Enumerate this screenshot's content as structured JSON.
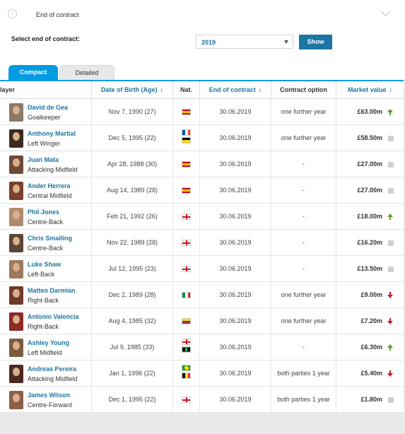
{
  "header": {
    "title": "End of contract"
  },
  "filter": {
    "label": "Select end of contract:",
    "selected": "2019",
    "button": "Show"
  },
  "tabs": [
    {
      "label": "Compact"
    },
    {
      "label": "Detailed"
    }
  ],
  "columns": {
    "player": "layer",
    "dob": "Date of Birth (Age)",
    "nat": "Nat.",
    "eoc": "End of contract",
    "option": "Contract option",
    "value": "Market value",
    "sort_glyph": "↕"
  },
  "colors": {
    "accent": "#009ce3",
    "link": "#1d75a3",
    "up": "#5c9c2e",
    "down": "#c81c1c"
  },
  "players": [
    {
      "name": "David de Gea",
      "position": "Goalkeeper",
      "dob": "Nov 7, 1990 (27)",
      "nat": [
        "spain"
      ],
      "eoc": "30.06.2019",
      "option": "one further year",
      "value": "£63.00m",
      "trend": "up",
      "avatar": "#8a7a66"
    },
    {
      "name": "Anthony Martial",
      "position": "Left Winger",
      "dob": "Dec 5, 1995 (22)",
      "nat": [
        "france",
        "guadeloupe"
      ],
      "eoc": "30.06.2019",
      "option": "one further year",
      "value": "£58.50m",
      "trend": "same",
      "avatar": "#3b2a22"
    },
    {
      "name": "Juan Mata",
      "position": "Attacking Midfield",
      "dob": "Apr 28, 1988 (30)",
      "nat": [
        "spain"
      ],
      "eoc": "30.06.2019",
      "option": "-",
      "value": "£27.00m",
      "trend": "same",
      "avatar": "#6b4a36"
    },
    {
      "name": "Ander Herrera",
      "position": "Central Midfield",
      "dob": "Aug 14, 1989 (28)",
      "nat": [
        "spain"
      ],
      "eoc": "30.06.2019",
      "option": "-",
      "value": "£27.00m",
      "trend": "same",
      "avatar": "#7a3f2e"
    },
    {
      "name": "Phil Jones",
      "position": "Centre-Back",
      "dob": "Feb 21, 1992 (26)",
      "nat": [
        "england"
      ],
      "eoc": "30.06.2019",
      "option": "-",
      "value": "£18.00m",
      "trend": "up",
      "avatar": "#b08a6e"
    },
    {
      "name": "Chris Smalling",
      "position": "Centre-Back",
      "dob": "Nov 22, 1989 (28)",
      "nat": [
        "england"
      ],
      "eoc": "30.06.2019",
      "option": "-",
      "value": "£16.20m",
      "trend": "same",
      "avatar": "#5a4536"
    },
    {
      "name": "Luke Shaw",
      "position": "Left-Back",
      "dob": "Jul 12, 1995 (23)",
      "nat": [
        "england"
      ],
      "eoc": "30.06.2019",
      "option": "-",
      "value": "£13.50m",
      "trend": "same",
      "avatar": "#9c7a5e"
    },
    {
      "name": "Matteo Darmian",
      "position": "Right-Back",
      "dob": "Dec 2, 1989 (28)",
      "nat": [
        "italy"
      ],
      "eoc": "30.06.2019",
      "option": "one further year",
      "value": "£9.00m",
      "trend": "down",
      "avatar": "#6e3a2a"
    },
    {
      "name": "Antonio Valencia",
      "position": "Right-Back",
      "dob": "Aug 4, 1985 (32)",
      "nat": [
        "ecuador"
      ],
      "eoc": "30.06.2019",
      "option": "one further year",
      "value": "£7.20m",
      "trend": "down",
      "avatar": "#8b2a26"
    },
    {
      "name": "Ashley Young",
      "position": "Left Midfield",
      "dob": "Jul 9, 1985 (33)",
      "nat": [
        "england",
        "jamaica"
      ],
      "eoc": "30.06.2019",
      "option": "-",
      "value": "£6.30m",
      "trend": "up",
      "avatar": "#7c5a3e"
    },
    {
      "name": "Andreas Pereira",
      "position": "Attacking Midfield",
      "dob": "Jan 1, 1996 (22)",
      "nat": [
        "brazil",
        "belgium"
      ],
      "eoc": "30.06.2019",
      "option": "both parties 1 year",
      "value": "£5.40m",
      "trend": "down",
      "avatar": "#4a2a22"
    },
    {
      "name": "James Wilson",
      "position": "Centre-Forward",
      "dob": "Dec 1, 1995 (22)",
      "nat": [
        "england"
      ],
      "eoc": "30.06.2019",
      "option": "both parties 1 year",
      "value": "£1.80m",
      "trend": "same",
      "avatar": "#8c5e48"
    }
  ]
}
